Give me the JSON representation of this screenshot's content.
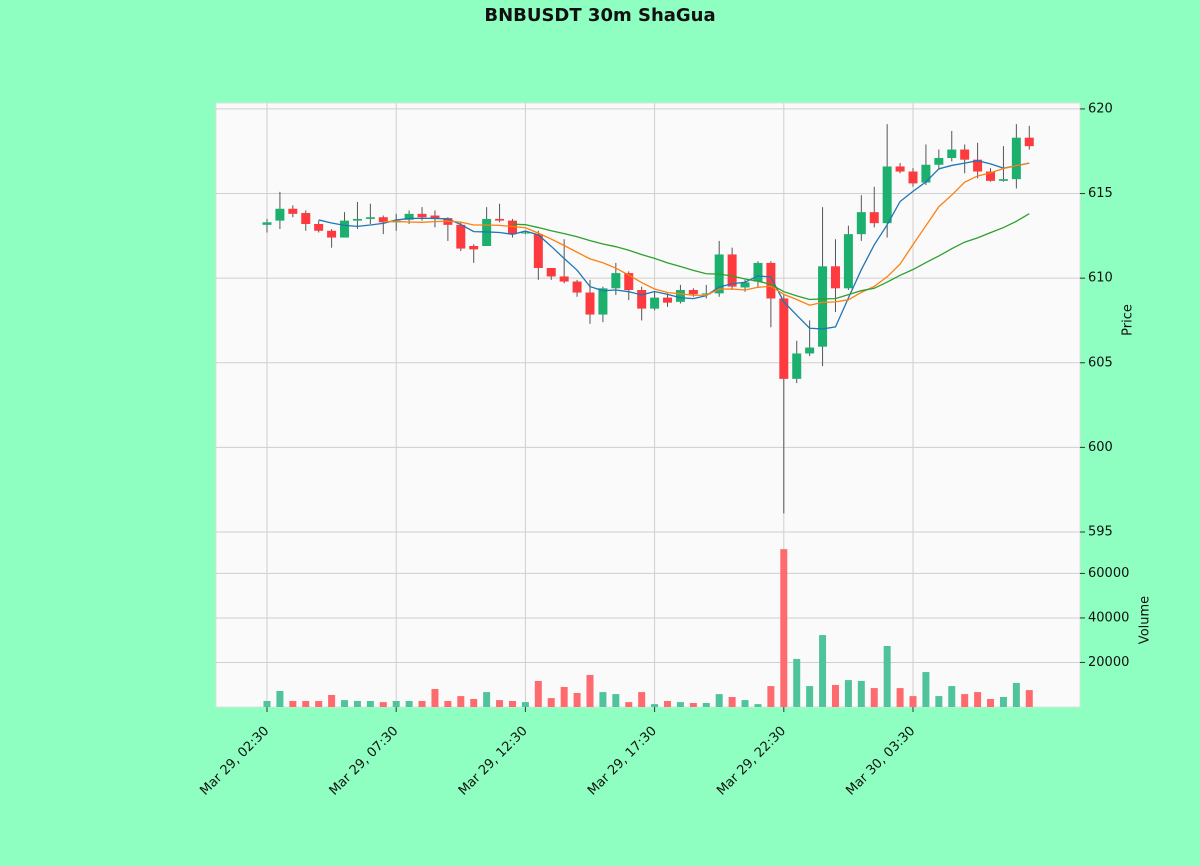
{
  "chart_data": {
    "type": "candlestick",
    "title": "BNBUSDT 30m ShaGua",
    "ylabel": "Price",
    "categories": [
      "Mar 29, 02:30",
      null,
      null,
      null,
      null,
      null,
      null,
      null,
      null,
      null,
      "Mar 29, 07:30",
      null,
      null,
      null,
      null,
      null,
      null,
      null,
      null,
      null,
      "Mar 29, 12:30",
      null,
      null,
      null,
      null,
      null,
      null,
      null,
      null,
      null,
      "Mar 29, 17:30",
      null,
      null,
      null,
      null,
      null,
      null,
      null,
      null,
      null,
      "Mar 29, 22:30",
      null,
      null,
      null,
      null,
      null,
      null,
      null,
      null,
      null,
      "Mar 30, 03:30",
      null,
      null,
      null,
      null,
      null,
      null,
      null,
      null,
      null
    ],
    "open": [
      613.15,
      613.4,
      614.1,
      613.85,
      613.2,
      612.8,
      612.4,
      613.4,
      613.5,
      613.6,
      613.3,
      613.45,
      613.8,
      613.7,
      613.55,
      613.15,
      611.9,
      611.9,
      613.5,
      613.4,
      612.65,
      612.6,
      610.6,
      610.1,
      609.8,
      609.15,
      607.85,
      609.4,
      610.3,
      609.3,
      608.2,
      608.85,
      608.6,
      609.3,
      609.05,
      609.1,
      611.4,
      609.45,
      609.8,
      610.9,
      608.8,
      604.05,
      605.55,
      605.95,
      610.7,
      609.4,
      612.6,
      613.9,
      613.25,
      616.6,
      616.3,
      615.65,
      616.7,
      617.1,
      617.6,
      617.0,
      616.3,
      615.75,
      615.85,
      618.3
    ],
    "high": [
      613.5,
      615.1,
      614.3,
      614.0,
      613.4,
      612.9,
      613.9,
      614.5,
      614.4,
      613.7,
      613.8,
      614.0,
      614.2,
      614.0,
      613.6,
      613.3,
      612.0,
      614.2,
      614.4,
      613.5,
      612.8,
      612.8,
      610.6,
      612.3,
      609.9,
      609.9,
      609.5,
      610.9,
      610.4,
      609.5,
      609.2,
      609.1,
      609.6,
      609.4,
      609.6,
      612.2,
      611.8,
      609.9,
      611.0,
      611.0,
      609.0,
      606.3,
      607.5,
      614.2,
      612.3,
      613.1,
      614.9,
      615.4,
      619.1,
      616.8,
      616.5,
      617.9,
      617.6,
      618.7,
      617.9,
      618.0,
      616.5,
      617.8,
      619.1,
      619.0
    ],
    "low": [
      612.7,
      612.9,
      613.6,
      612.8,
      612.7,
      611.8,
      612.4,
      612.9,
      613.2,
      612.6,
      612.8,
      613.2,
      613.4,
      613.0,
      612.2,
      611.6,
      610.9,
      611.9,
      613.3,
      612.4,
      612.6,
      609.9,
      609.9,
      609.7,
      608.9,
      607.3,
      607.4,
      609.0,
      608.7,
      607.5,
      608.1,
      608.3,
      608.5,
      608.9,
      608.8,
      608.9,
      609.3,
      609.2,
      609.5,
      607.1,
      596.1,
      603.8,
      605.4,
      604.8,
      608.0,
      609.3,
      612.2,
      613.0,
      612.4,
      616.2,
      615.4,
      615.5,
      616.4,
      616.9,
      616.2,
      615.9,
      615.7,
      615.7,
      615.3,
      617.6
    ],
    "close": [
      613.3,
      614.1,
      613.8,
      613.2,
      612.8,
      612.4,
      613.4,
      613.5,
      613.6,
      613.3,
      613.4,
      613.8,
      613.6,
      613.55,
      613.15,
      611.75,
      611.7,
      613.5,
      613.4,
      612.6,
      612.7,
      610.6,
      610.1,
      609.8,
      609.15,
      607.85,
      609.4,
      610.3,
      609.3,
      608.2,
      608.85,
      608.55,
      609.3,
      609.05,
      609.1,
      611.4,
      609.5,
      609.75,
      610.9,
      608.8,
      604.05,
      605.55,
      605.9,
      610.7,
      609.4,
      612.6,
      613.9,
      613.25,
      616.6,
      616.3,
      615.6,
      616.7,
      617.1,
      617.6,
      617.0,
      616.3,
      615.75,
      615.85,
      618.3,
      617.8
    ],
    "up_color": "#1cb06f",
    "down_color": "#fd3a3e",
    "wick_color": "#555555",
    "series": [
      {
        "color": "#1f77b4",
        "values": [
          null,
          null,
          null,
          null,
          613.44,
          613.26,
          613.12,
          613.06,
          613.14,
          613.24,
          613.44,
          613.52,
          613.54,
          613.53,
          613.5,
          613.17,
          612.75,
          612.73,
          612.7,
          612.59,
          612.78,
          612.56,
          611.88,
          611.16,
          610.47,
          609.5,
          609.26,
          609.3,
          609.2,
          609.01,
          609.21,
          609.04,
          608.84,
          608.79,
          608.97,
          609.48,
          609.67,
          609.76,
          610.13,
          610.07,
          608.6,
          607.81,
          607.04,
          607.0,
          607.12,
          608.83,
          610.5,
          611.97,
          613.15,
          614.53,
          615.13,
          615.69,
          616.46,
          616.66,
          616.8,
          616.94,
          616.75,
          616.5,
          616.64,
          616.8
        ]
      },
      {
        "color": "#ff7f0e",
        "values": [
          null,
          null,
          null,
          null,
          null,
          null,
          null,
          null,
          null,
          613.34,
          613.35,
          613.32,
          613.3,
          613.34,
          613.37,
          613.31,
          613.14,
          613.14,
          613.12,
          613.05,
          612.98,
          612.66,
          612.31,
          611.93,
          611.53,
          611.14,
          610.91,
          610.59,
          610.18,
          609.74,
          609.36,
          609.15,
          609.07,
          608.99,
          608.99,
          609.35,
          609.36,
          609.3,
          609.46,
          609.52,
          609.04,
          608.74,
          608.4,
          608.57,
          608.6,
          608.72,
          609.16,
          609.51,
          610.08,
          610.83,
          611.98,
          613.1,
          614.22,
          614.91,
          615.67,
          616.04,
          616.22,
          616.48,
          616.65,
          616.8
        ]
      },
      {
        "color": "#2ca02c",
        "values": [
          null,
          null,
          null,
          null,
          null,
          null,
          null,
          null,
          null,
          null,
          null,
          null,
          null,
          null,
          null,
          null,
          null,
          null,
          null,
          613.19,
          613.16,
          612.99,
          612.8,
          612.63,
          612.45,
          612.22,
          612.02,
          611.86,
          611.65,
          611.39,
          611.17,
          610.9,
          610.69,
          610.46,
          610.26,
          610.24,
          610.13,
          609.95,
          609.82,
          609.63,
          609.2,
          608.95,
          608.74,
          608.78,
          608.79,
          609.03,
          609.26,
          609.4,
          609.77,
          610.17,
          610.51,
          610.92,
          611.31,
          611.74,
          612.13,
          612.38,
          612.69,
          612.99,
          613.36,
          613.81
        ]
      }
    ],
    "ylim": [
      595,
      620.35
    ],
    "yticks": [
      595,
      600,
      605,
      610,
      615,
      620
    ],
    "grid": true,
    "volume": {
      "ylabel": "Volume",
      "up_color": "#4fc49a",
      "down_color": "#fe6b6e",
      "values": [
        2700,
        7200,
        2700,
        2700,
        2700,
        5400,
        3100,
        2700,
        2700,
        2200,
        2700,
        2700,
        2700,
        8100,
        2700,
        4900,
        3600,
        6700,
        3100,
        2700,
        2200,
        11700,
        4000,
        9000,
        6300,
        14400,
        6700,
        5800,
        2200,
        6700,
        1300,
        2700,
        2200,
        1800,
        1800,
        5800,
        4500,
        3100,
        1300,
        9400,
        70900,
        21600,
        9400,
        32300,
        9900,
        12100,
        11700,
        8500,
        27400,
        8500,
        4900,
        15700,
        4900,
        9400,
        5800,
        6700,
        3600,
        4500,
        10800,
        7600
      ],
      "ylim": [
        0,
        78600
      ],
      "yticks": [
        20000,
        40000,
        60000
      ]
    }
  }
}
